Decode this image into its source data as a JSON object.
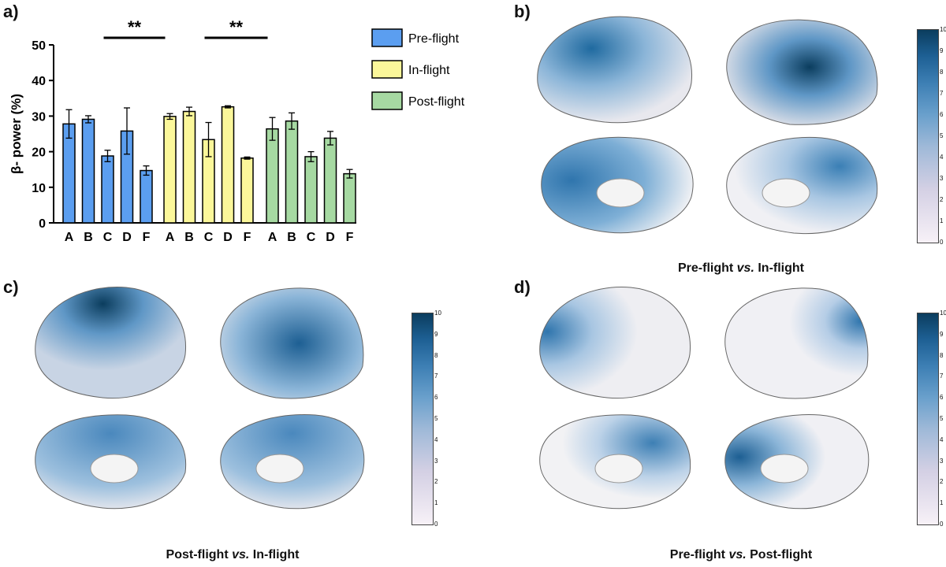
{
  "chart_data": {
    "type": "bar",
    "ylabel": "β- power (%)",
    "ylim": [
      0,
      50
    ],
    "yticks": [
      0,
      10,
      20,
      30,
      40,
      50
    ],
    "legend_position": "top-right",
    "groups": [
      {
        "name": "Pre-flight",
        "color": "#5b9ef0",
        "categories": [
          "A",
          "B",
          "C",
          "D",
          "F"
        ],
        "values": [
          27.8,
          29.1,
          18.8,
          25.8,
          14.7
        ],
        "errors": [
          4.0,
          1.0,
          1.6,
          6.5,
          1.3
        ]
      },
      {
        "name": "In-flight",
        "color": "#fbf79a",
        "categories": [
          "A",
          "B",
          "C",
          "D",
          "F"
        ],
        "values": [
          29.9,
          31.3,
          23.4,
          32.6,
          18.2
        ],
        "errors": [
          0.8,
          1.2,
          4.8,
          0.3,
          0.3
        ]
      },
      {
        "name": "Post-flight",
        "color": "#a6d9a2",
        "categories": [
          "A",
          "B",
          "C",
          "D",
          "F"
        ],
        "values": [
          26.4,
          28.6,
          18.6,
          23.8,
          13.8
        ],
        "errors": [
          3.2,
          2.3,
          1.4,
          1.9,
          1.2
        ]
      }
    ],
    "significance": [
      {
        "label": "**",
        "from_group": 0,
        "to_group": 1
      },
      {
        "label": "**",
        "from_group": 1,
        "to_group": 2
      }
    ]
  },
  "panels": {
    "a": "a)",
    "b": "b)",
    "c": "c)",
    "d": "d)"
  },
  "captions": {
    "b": {
      "left": "Pre-flight ",
      "vs": "vs.",
      "right": " In-flight"
    },
    "c": {
      "left": "Post-flight ",
      "vs": "vs.",
      "right": " In-flight"
    },
    "d": {
      "left": "Pre-flight ",
      "vs": "vs.",
      "right": " Post-flight"
    }
  },
  "colorbar": {
    "ticks": [
      "10",
      "9",
      "8",
      "7",
      "6",
      "5",
      "4",
      "3",
      "2",
      "1",
      "0"
    ]
  }
}
